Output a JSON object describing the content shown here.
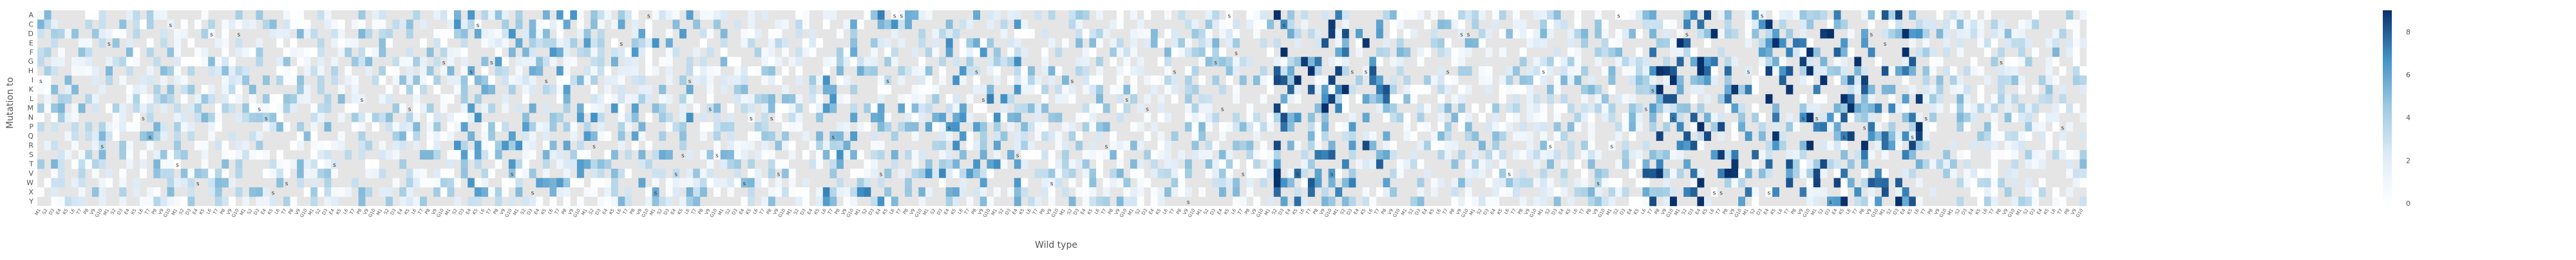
{
  "chart_data": {
    "type": "heatmap",
    "title": "",
    "xlabel": "Wild type",
    "ylabel": "Mutation to",
    "rows": [
      "A",
      "C",
      "D",
      "E",
      "F",
      "G",
      "H",
      "I",
      "K",
      "L",
      "M",
      "N",
      "P",
      "Q",
      "R",
      "S",
      "T",
      "V",
      "W",
      "X",
      "Y"
    ],
    "num_columns": 300,
    "sample_x_tick_labels": [
      "M1",
      "S2",
      "D3",
      "E4",
      "K5",
      "L6",
      "T7",
      "P8",
      "V9",
      "G10"
    ],
    "colorbar": {
      "vmin": 0,
      "vmax": 9,
      "ticks": [
        0,
        2,
        4,
        6,
        8
      ],
      "colors": [
        "#ffffff",
        "#deebf7",
        "#9ecae1",
        "#4292c6",
        "#08306b"
      ]
    },
    "mask_color": "#e5e5e5",
    "annotation_marker": "s",
    "grid": false
  }
}
